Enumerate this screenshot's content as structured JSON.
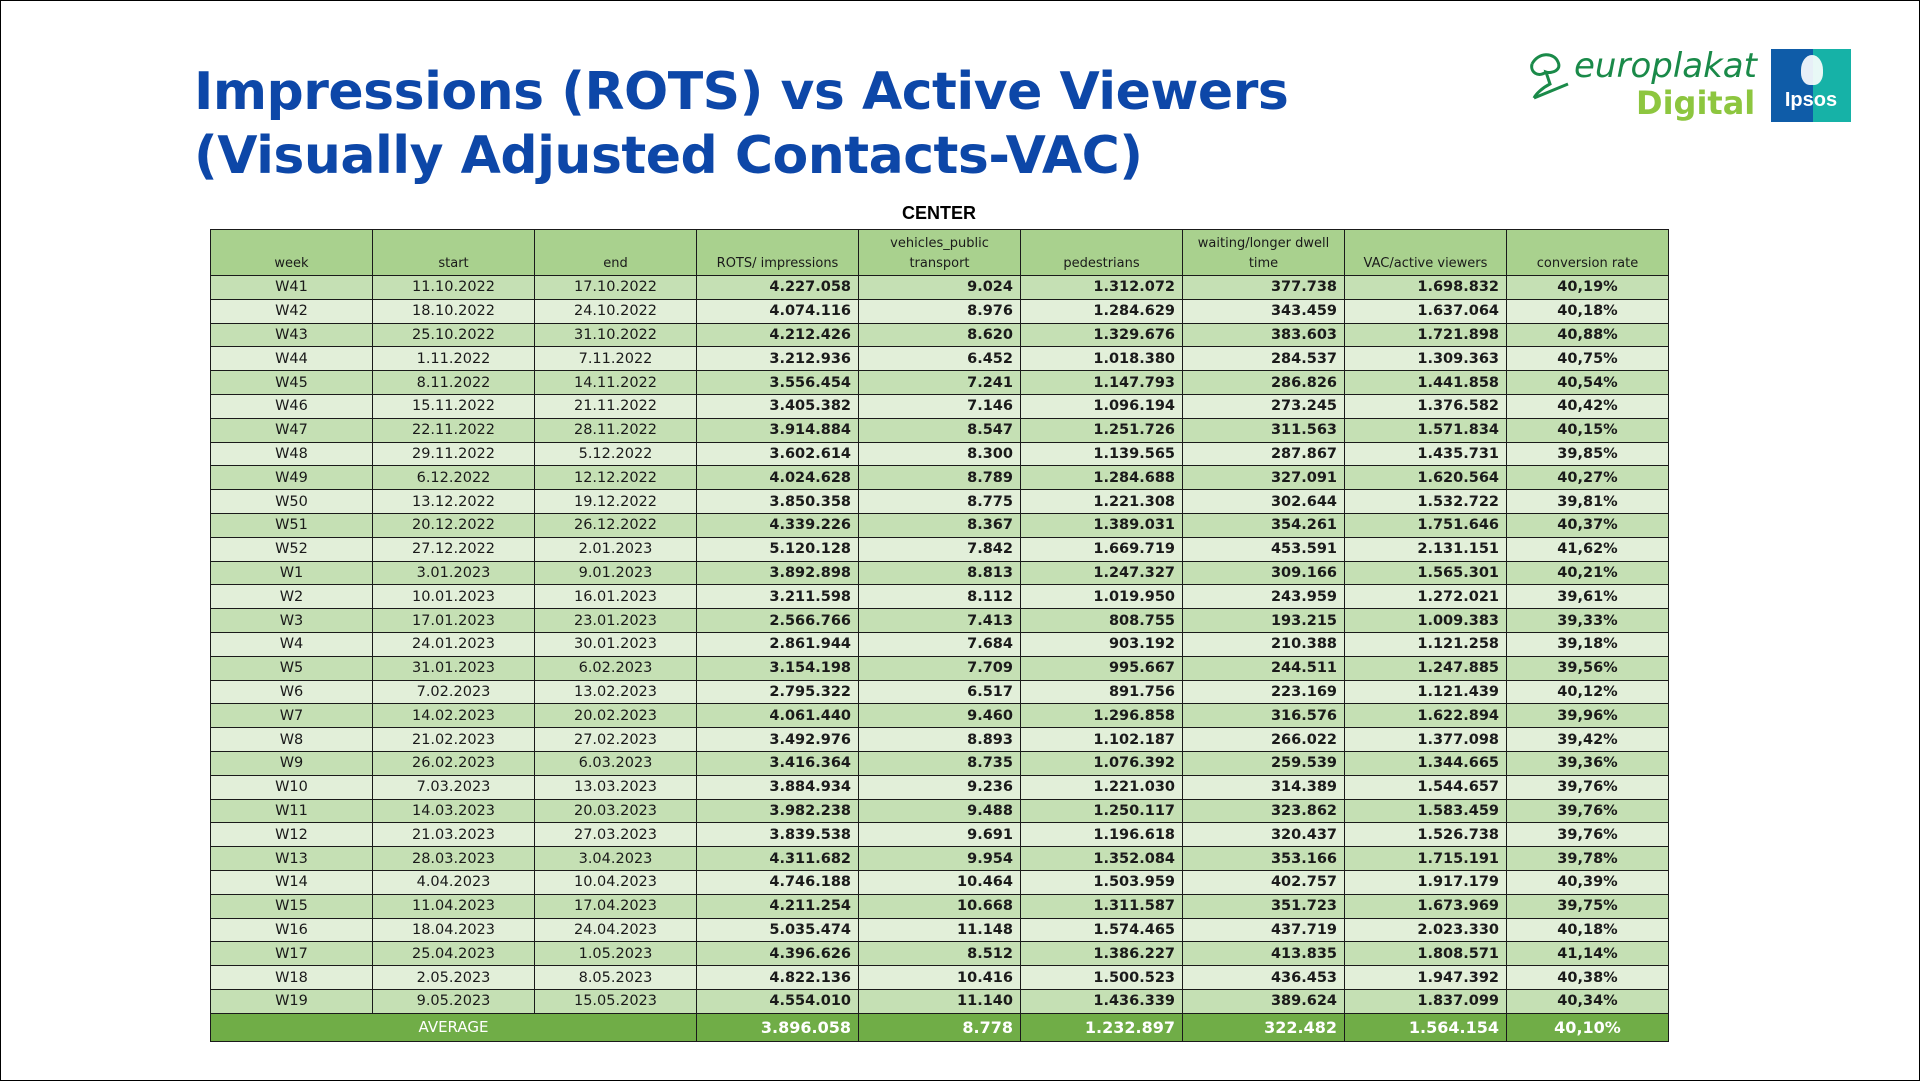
{
  "title": {
    "line1": "Impressions (ROTS) vs Active Viewers",
    "line2": "(Visually Adjusted Contacts-VAC)"
  },
  "logos": {
    "europlakat_brand": "europlakat",
    "europlakat_sub": "Digital",
    "ipsos": "Ipsos",
    "colors": {
      "europlakat_green": "#1a8a49",
      "digital_green": "#8dc63f",
      "ipsos_blue": "#0f5ca8",
      "ipsos_teal": "#16b2a7"
    }
  },
  "table": {
    "caption": "CENTER",
    "headers": [
      "week",
      "start",
      "end",
      "ROTS/ impressions",
      "vehicles_public transport",
      "pedestrians",
      "waiting/longer dwell time",
      "VAC/active viewers",
      "conversion rate"
    ],
    "rows": [
      [
        "W41",
        "11.10.2022",
        "17.10.2022",
        "4.227.058",
        "9.024",
        "1.312.072",
        "377.738",
        "1.698.832",
        "40,19%"
      ],
      [
        "W42",
        "18.10.2022",
        "24.10.2022",
        "4.074.116",
        "8.976",
        "1.284.629",
        "343.459",
        "1.637.064",
        "40,18%"
      ],
      [
        "W43",
        "25.10.2022",
        "31.10.2022",
        "4.212.426",
        "8.620",
        "1.329.676",
        "383.603",
        "1.721.898",
        "40,88%"
      ],
      [
        "W44",
        "1.11.2022",
        "7.11.2022",
        "3.212.936",
        "6.452",
        "1.018.380",
        "284.537",
        "1.309.363",
        "40,75%"
      ],
      [
        "W45",
        "8.11.2022",
        "14.11.2022",
        "3.556.454",
        "7.241",
        "1.147.793",
        "286.826",
        "1.441.858",
        "40,54%"
      ],
      [
        "W46",
        "15.11.2022",
        "21.11.2022",
        "3.405.382",
        "7.146",
        "1.096.194",
        "273.245",
        "1.376.582",
        "40,42%"
      ],
      [
        "W47",
        "22.11.2022",
        "28.11.2022",
        "3.914.884",
        "8.547",
        "1.251.726",
        "311.563",
        "1.571.834",
        "40,15%"
      ],
      [
        "W48",
        "29.11.2022",
        "5.12.2022",
        "3.602.614",
        "8.300",
        "1.139.565",
        "287.867",
        "1.435.731",
        "39,85%"
      ],
      [
        "W49",
        "6.12.2022",
        "12.12.2022",
        "4.024.628",
        "8.789",
        "1.284.688",
        "327.091",
        "1.620.564",
        "40,27%"
      ],
      [
        "W50",
        "13.12.2022",
        "19.12.2022",
        "3.850.358",
        "8.775",
        "1.221.308",
        "302.644",
        "1.532.722",
        "39,81%"
      ],
      [
        "W51",
        "20.12.2022",
        "26.12.2022",
        "4.339.226",
        "8.367",
        "1.389.031",
        "354.261",
        "1.751.646",
        "40,37%"
      ],
      [
        "W52",
        "27.12.2022",
        "2.01.2023",
        "5.120.128",
        "7.842",
        "1.669.719",
        "453.591",
        "2.131.151",
        "41,62%"
      ],
      [
        "W1",
        "3.01.2023",
        "9.01.2023",
        "3.892.898",
        "8.813",
        "1.247.327",
        "309.166",
        "1.565.301",
        "40,21%"
      ],
      [
        "W2",
        "10.01.2023",
        "16.01.2023",
        "3.211.598",
        "8.112",
        "1.019.950",
        "243.959",
        "1.272.021",
        "39,61%"
      ],
      [
        "W3",
        "17.01.2023",
        "23.01.2023",
        "2.566.766",
        "7.413",
        "808.755",
        "193.215",
        "1.009.383",
        "39,33%"
      ],
      [
        "W4",
        "24.01.2023",
        "30.01.2023",
        "2.861.944",
        "7.684",
        "903.192",
        "210.388",
        "1.121.258",
        "39,18%"
      ],
      [
        "W5",
        "31.01.2023",
        "6.02.2023",
        "3.154.198",
        "7.709",
        "995.667",
        "244.511",
        "1.247.885",
        "39,56%"
      ],
      [
        "W6",
        "7.02.2023",
        "13.02.2023",
        "2.795.322",
        "6.517",
        "891.756",
        "223.169",
        "1.121.439",
        "40,12%"
      ],
      [
        "W7",
        "14.02.2023",
        "20.02.2023",
        "4.061.440",
        "9.460",
        "1.296.858",
        "316.576",
        "1.622.894",
        "39,96%"
      ],
      [
        "W8",
        "21.02.2023",
        "27.02.2023",
        "3.492.976",
        "8.893",
        "1.102.187",
        "266.022",
        "1.377.098",
        "39,42%"
      ],
      [
        "W9",
        "26.02.2023",
        "6.03.2023",
        "3.416.364",
        "8.735",
        "1.076.392",
        "259.539",
        "1.344.665",
        "39,36%"
      ],
      [
        "W10",
        "7.03.2023",
        "13.03.2023",
        "3.884.934",
        "9.236",
        "1.221.030",
        "314.389",
        "1.544.657",
        "39,76%"
      ],
      [
        "W11",
        "14.03.2023",
        "20.03.2023",
        "3.982.238",
        "9.488",
        "1.250.117",
        "323.862",
        "1.583.459",
        "39,76%"
      ],
      [
        "W12",
        "21.03.2023",
        "27.03.2023",
        "3.839.538",
        "9.691",
        "1.196.618",
        "320.437",
        "1.526.738",
        "39,76%"
      ],
      [
        "W13",
        "28.03.2023",
        "3.04.2023",
        "4.311.682",
        "9.954",
        "1.352.084",
        "353.166",
        "1.715.191",
        "39,78%"
      ],
      [
        "W14",
        "4.04.2023",
        "10.04.2023",
        "4.746.188",
        "10.464",
        "1.503.959",
        "402.757",
        "1.917.179",
        "40,39%"
      ],
      [
        "W15",
        "11.04.2023",
        "17.04.2023",
        "4.211.254",
        "10.668",
        "1.311.587",
        "351.723",
        "1.673.969",
        "39,75%"
      ],
      [
        "W16",
        "18.04.2023",
        "24.04.2023",
        "5.035.474",
        "11.148",
        "1.574.465",
        "437.719",
        "2.023.330",
        "40,18%"
      ],
      [
        "W17",
        "25.04.2023",
        "1.05.2023",
        "4.396.626",
        "8.512",
        "1.386.227",
        "413.835",
        "1.808.571",
        "41,14%"
      ],
      [
        "W18",
        "2.05.2023",
        "8.05.2023",
        "4.822.136",
        "10.416",
        "1.500.523",
        "436.453",
        "1.947.392",
        "40,38%"
      ],
      [
        "W19",
        "9.05.2023",
        "15.05.2023",
        "4.554.010",
        "11.140",
        "1.436.339",
        "389.624",
        "1.837.099",
        "40,34%"
      ]
    ],
    "average": {
      "label": "AVERAGE",
      "values": [
        "3.896.058",
        "8.778",
        "1.232.897",
        "322.482",
        "1.564.154",
        "40,10%"
      ]
    },
    "colors": {
      "header": "#a9d18e",
      "row_odd": "#c5e0b4",
      "row_even": "#e2efd9",
      "average": "#70ad47"
    }
  }
}
